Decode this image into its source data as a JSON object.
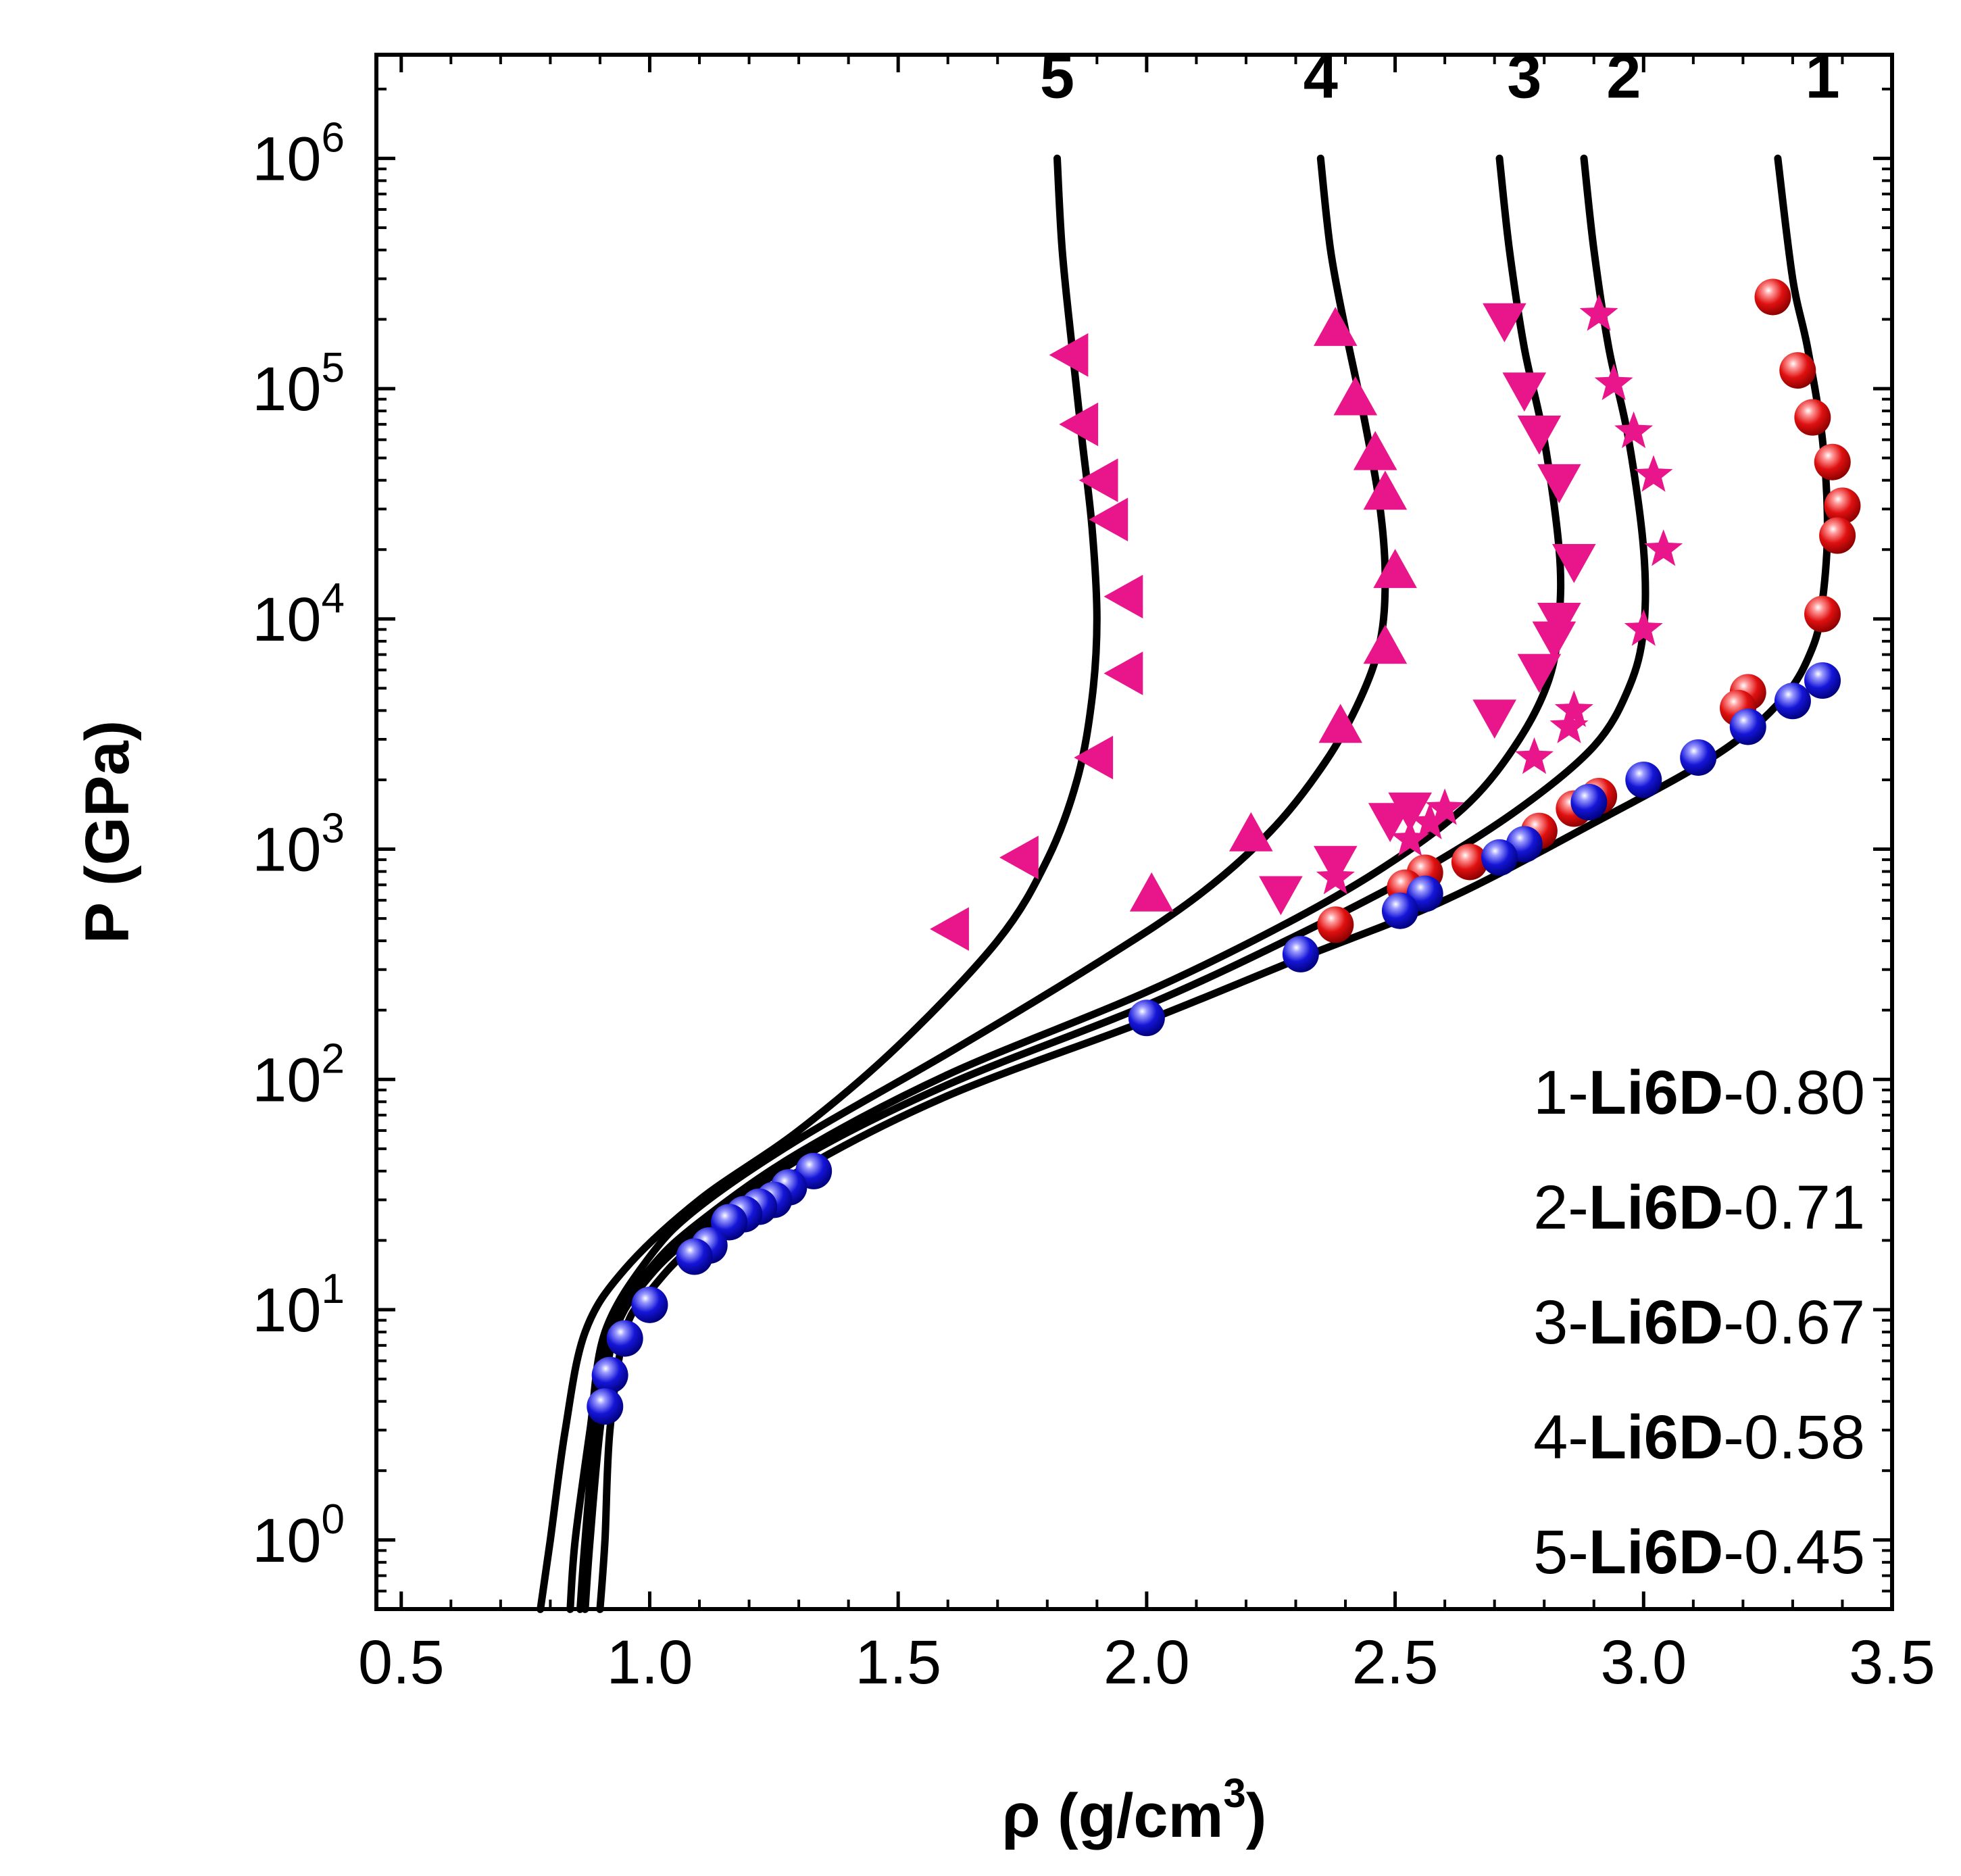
{
  "chart_data": {
    "type": "scatter",
    "xlabel": "ρ (g/cm³)",
    "xlabel_parts": {
      "pre": "ρ (g/cm",
      "sup": "3",
      "post": ")"
    },
    "ylabel": "P (GPa)",
    "xlim": [
      0.45,
      3.5
    ],
    "ylim_log10": [
      -0.3,
      6.45
    ],
    "y_scale": "log",
    "grid": false,
    "legend_placement": "bottom-right",
    "x_ticks": [
      {
        "v": 0.5,
        "label": "0.5"
      },
      {
        "v": 1.0,
        "label": "1.0"
      },
      {
        "v": 1.5,
        "label": "1.5"
      },
      {
        "v": 2.0,
        "label": "2.0"
      },
      {
        "v": 2.5,
        "label": "2.5"
      },
      {
        "v": 3.0,
        "label": "3.0"
      },
      {
        "v": 3.5,
        "label": "3.5"
      }
    ],
    "y_ticks": [
      {
        "exp": 0,
        "base": "10",
        "sup": "0"
      },
      {
        "exp": 1,
        "base": "10",
        "sup": "1"
      },
      {
        "exp": 2,
        "base": "10",
        "sup": "2"
      },
      {
        "exp": 3,
        "base": "10",
        "sup": "3"
      },
      {
        "exp": 4,
        "base": "10",
        "sup": "4"
      },
      {
        "exp": 5,
        "base": "10",
        "sup": "5"
      },
      {
        "exp": 6,
        "base": "10",
        "sup": "6"
      }
    ],
    "legend": [
      {
        "num": "1-",
        "bold": "Li6D",
        "val": "-0.80"
      },
      {
        "num": "2-",
        "bold": "Li6D",
        "val": "-0.71"
      },
      {
        "num": "3-",
        "bold": "Li6D",
        "val": "-0.67"
      },
      {
        "num": "4-",
        "bold": "Li6D",
        "val": "-0.58"
      },
      {
        "num": "5-",
        "bold": "Li6D",
        "val": "-0.45"
      }
    ],
    "curves": [
      {
        "label": "1",
        "label_at": [
          3.36,
          1400000.0
        ],
        "points": [
          [
            0.9,
            0.5
          ],
          [
            0.91,
            1
          ],
          [
            0.92,
            3
          ],
          [
            0.95,
            8
          ],
          [
            1.0,
            12
          ],
          [
            1.1,
            20
          ],
          [
            1.3,
            40
          ],
          [
            1.6,
            85
          ],
          [
            2.0,
            180
          ],
          [
            2.3,
            330
          ],
          [
            2.6,
            600
          ],
          [
            2.9,
            1300
          ],
          [
            3.15,
            2600
          ],
          [
            3.28,
            4500
          ],
          [
            3.34,
            7500
          ],
          [
            3.36,
            12000
          ],
          [
            3.37,
            25000
          ],
          [
            3.36,
            60000
          ],
          [
            3.33,
            150000
          ],
          [
            3.3,
            300000
          ],
          [
            3.27,
            1000000.0
          ]
        ]
      },
      {
        "label": "2",
        "label_at": [
          2.96,
          1400000.0
        ],
        "points": [
          [
            0.87,
            0.5
          ],
          [
            0.88,
            1
          ],
          [
            0.9,
            3
          ],
          [
            0.93,
            8
          ],
          [
            1.0,
            14
          ],
          [
            1.1,
            22
          ],
          [
            1.3,
            45
          ],
          [
            1.6,
            95
          ],
          [
            2.0,
            210
          ],
          [
            2.3,
            420
          ],
          [
            2.55,
            800
          ],
          [
            2.75,
            1500
          ],
          [
            2.9,
            2800
          ],
          [
            2.97,
            5000
          ],
          [
            3.0,
            9000
          ],
          [
            3.0,
            20000
          ],
          [
            2.97,
            60000
          ],
          [
            2.93,
            150000
          ],
          [
            2.9,
            400000
          ],
          [
            2.88,
            1000000.0
          ]
        ]
      },
      {
        "label": "3",
        "label_at": [
          2.76,
          1400000.0
        ],
        "points": [
          [
            0.86,
            0.5
          ],
          [
            0.87,
            1
          ],
          [
            0.89,
            3
          ],
          [
            0.92,
            8
          ],
          [
            1.0,
            15
          ],
          [
            1.1,
            24
          ],
          [
            1.3,
            48
          ],
          [
            1.6,
            105
          ],
          [
            2.0,
            240
          ],
          [
            2.3,
            500
          ],
          [
            2.5,
            900
          ],
          [
            2.65,
            1600
          ],
          [
            2.75,
            3000
          ],
          [
            2.81,
            5500
          ],
          [
            2.83,
            10000
          ],
          [
            2.83,
            20000
          ],
          [
            2.8,
            60000
          ],
          [
            2.76,
            150000
          ],
          [
            2.73,
            400000
          ],
          [
            2.71,
            1000000.0
          ]
        ]
      },
      {
        "label": "4",
        "label_at": [
          2.35,
          1400000.0
        ],
        "points": [
          [
            0.84,
            0.5
          ],
          [
            0.85,
            1
          ],
          [
            0.88,
            3
          ],
          [
            0.91,
            8
          ],
          [
            1.0,
            17
          ],
          [
            1.1,
            28
          ],
          [
            1.3,
            55
          ],
          [
            1.6,
            130
          ],
          [
            1.9,
            320
          ],
          [
            2.1,
            620
          ],
          [
            2.25,
            1200
          ],
          [
            2.36,
            2400
          ],
          [
            2.43,
            4500
          ],
          [
            2.47,
            8000
          ],
          [
            2.48,
            15000
          ],
          [
            2.47,
            30000
          ],
          [
            2.44,
            70000
          ],
          [
            2.4,
            180000
          ],
          [
            2.37,
            400000
          ],
          [
            2.35,
            1000000.0
          ]
        ]
      },
      {
        "label": "5",
        "label_at": [
          1.82,
          1400000.0
        ],
        "points": [
          [
            0.78,
            0.5
          ],
          [
            0.8,
            1
          ],
          [
            0.83,
            3
          ],
          [
            0.87,
            8
          ],
          [
            0.95,
            15
          ],
          [
            1.1,
            30
          ],
          [
            1.3,
            60
          ],
          [
            1.5,
            140
          ],
          [
            1.7,
            400
          ],
          [
            1.8,
            900
          ],
          [
            1.86,
            2000
          ],
          [
            1.89,
            4500
          ],
          [
            1.9,
            10000
          ],
          [
            1.89,
            25000
          ],
          [
            1.87,
            60000
          ],
          [
            1.85,
            150000
          ],
          [
            1.83,
            400000
          ],
          [
            1.82,
            1000000.0
          ]
        ]
      }
    ],
    "series": [
      {
        "marker": "sphere",
        "color": "#e01010",
        "points": [
          [
            3.26,
            250000
          ],
          [
            3.31,
            120000
          ],
          [
            3.34,
            75000
          ],
          [
            3.38,
            48000
          ],
          [
            3.4,
            31000
          ],
          [
            3.39,
            23000
          ],
          [
            3.36,
            10500
          ],
          [
            3.21,
            4800
          ],
          [
            3.19,
            4100
          ],
          [
            2.91,
            1700
          ],
          [
            2.86,
            1500
          ],
          [
            2.79,
            1200
          ],
          [
            2.65,
            880
          ],
          [
            2.56,
            790
          ],
          [
            2.52,
            680
          ],
          [
            2.38,
            470
          ]
        ]
      },
      {
        "marker": "sphere",
        "color": "#1515d8",
        "points": [
          [
            3.36,
            5400
          ],
          [
            3.3,
            4400
          ],
          [
            3.21,
            3400
          ],
          [
            3.11,
            2500
          ],
          [
            3.0,
            2000
          ],
          [
            2.89,
            1600
          ],
          [
            2.76,
            1050
          ],
          [
            2.71,
            920
          ],
          [
            2.56,
            640
          ],
          [
            2.51,
            540
          ],
          [
            2.31,
            350
          ],
          [
            2.0,
            185
          ],
          [
            1.33,
            40
          ],
          [
            1.28,
            34
          ],
          [
            1.25,
            30
          ],
          [
            1.22,
            28
          ],
          [
            1.19,
            26
          ],
          [
            1.16,
            24
          ],
          [
            1.12,
            19
          ],
          [
            1.09,
            17
          ],
          [
            1.0,
            10.5
          ],
          [
            0.95,
            7.5
          ],
          [
            0.92,
            5.2
          ],
          [
            0.91,
            3.8
          ]
        ]
      },
      {
        "marker": "star",
        "color": "#e8168a",
        "points": [
          [
            2.91,
            210000
          ],
          [
            2.94,
            105000
          ],
          [
            2.98,
            65000
          ],
          [
            3.02,
            42000
          ],
          [
            3.04,
            20000
          ],
          [
            3.0,
            9000
          ],
          [
            2.86,
            4000
          ],
          [
            2.85,
            3400
          ],
          [
            2.78,
            2500
          ],
          [
            2.6,
            1500
          ],
          [
            2.57,
            1300
          ],
          [
            2.53,
            1100
          ],
          [
            2.38,
            750
          ]
        ]
      },
      {
        "marker": "triangle-down",
        "color": "#e8168a",
        "points": [
          [
            2.72,
            200000
          ],
          [
            2.76,
            100000
          ],
          [
            2.79,
            65000
          ],
          [
            2.83,
            40000
          ],
          [
            2.86,
            18000
          ],
          [
            2.83,
            10000
          ],
          [
            2.82,
            8300
          ],
          [
            2.79,
            6000
          ],
          [
            2.7,
            3800
          ],
          [
            2.53,
            1500
          ],
          [
            2.49,
            1350
          ],
          [
            2.38,
            880
          ],
          [
            2.27,
            650
          ]
        ]
      },
      {
        "marker": "triangle-up",
        "color": "#e8168a",
        "points": [
          [
            2.38,
            180000
          ],
          [
            2.42,
            90000
          ],
          [
            2.46,
            52000
          ],
          [
            2.48,
            35000
          ],
          [
            2.5,
            16000
          ],
          [
            2.48,
            7500
          ],
          [
            2.39,
            3400
          ],
          [
            2.21,
            1150
          ],
          [
            2.01,
            630
          ]
        ]
      },
      {
        "marker": "triangle-left",
        "color": "#e8168a",
        "points": [
          [
            1.85,
            140000
          ],
          [
            1.87,
            70000
          ],
          [
            1.91,
            40000
          ],
          [
            1.93,
            27000
          ],
          [
            1.96,
            12500
          ],
          [
            1.96,
            5800
          ],
          [
            1.9,
            2500
          ],
          [
            1.75,
            920
          ],
          [
            1.61,
            450
          ]
        ]
      }
    ]
  }
}
